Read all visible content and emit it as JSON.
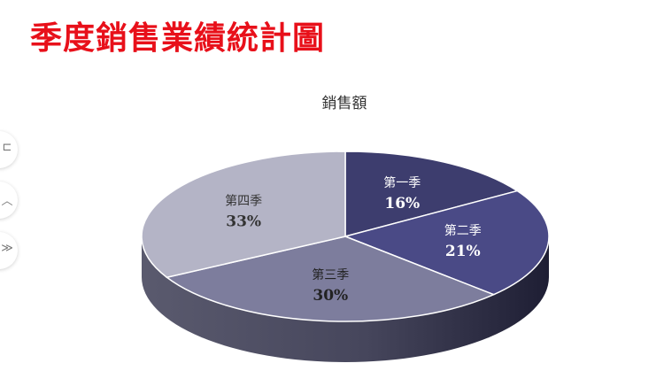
{
  "page": {
    "title": "季度銷售業績統計圖"
  },
  "side_tools": [
    {
      "icon": "bracket-icon",
      "glyph": "⊏"
    },
    {
      "icon": "chevron-up-icon",
      "glyph": "︿"
    },
    {
      "icon": "double-chevron-icon",
      "glyph": "≫"
    }
  ],
  "chart_data": {
    "type": "pie",
    "style": "3d",
    "title": "銷售額",
    "categories": [
      "第一季",
      "第二季",
      "第三季",
      "第四季"
    ],
    "values": [
      16,
      21,
      30,
      33
    ],
    "value_labels": [
      "16%",
      "21%",
      "30%",
      "33%"
    ],
    "colors": [
      "#3d3d6e",
      "#4a4a86",
      "#7d7d9d",
      "#b4b4c6"
    ],
    "label_colors": [
      "#ffffff",
      "#ffffff",
      "#222222",
      "#333333"
    ],
    "legend": "none"
  }
}
